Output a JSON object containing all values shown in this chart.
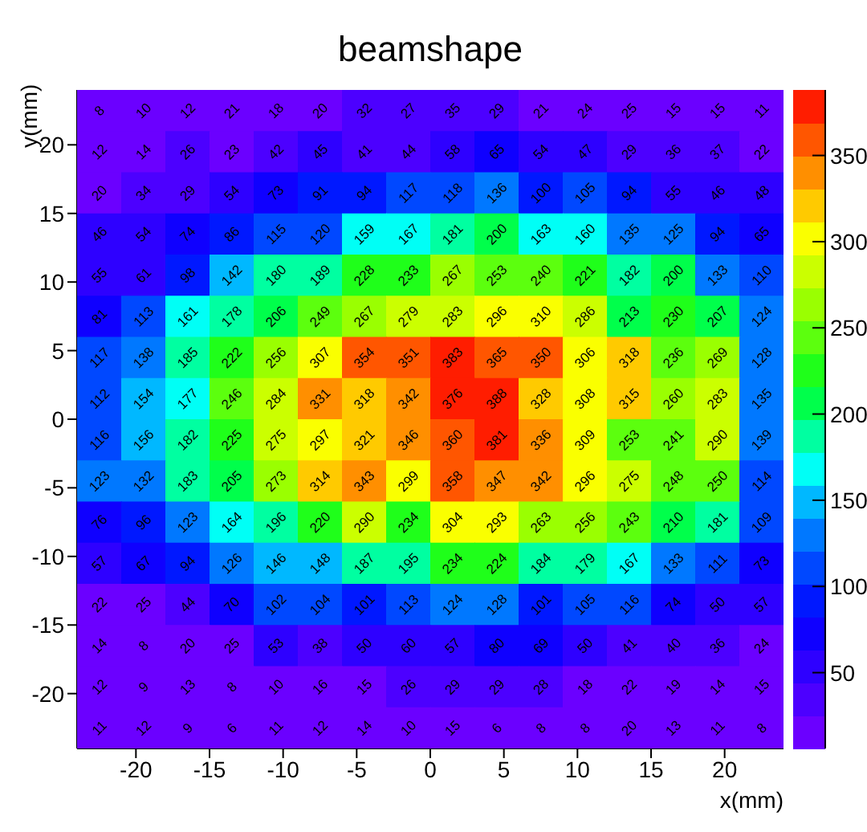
{
  "chart_data": {
    "type": "heatmap",
    "title": "beamshape",
    "xlabel": "x(mm)",
    "ylabel": "y(mm)",
    "xlim": [
      -24,
      24
    ],
    "xticks": [
      -20,
      -15,
      -10,
      -5,
      0,
      5,
      10,
      15,
      20
    ],
    "ylim": [
      -24,
      24
    ],
    "yticks": [
      -20,
      -15,
      -10,
      -5,
      0,
      5,
      10,
      15,
      20
    ],
    "clim": [
      6,
      388
    ],
    "cticks": [
      50,
      100,
      150,
      200,
      250,
      300,
      350
    ],
    "data_labels": true,
    "cells": [
      [
        8,
        10,
        12,
        21,
        18,
        20,
        32,
        27,
        35,
        29,
        21,
        24,
        25,
        15,
        15,
        11
      ],
      [
        12,
        14,
        26,
        23,
        42,
        45,
        41,
        44,
        58,
        65,
        54,
        47,
        29,
        36,
        37,
        22
      ],
      [
        20,
        34,
        29,
        54,
        73,
        91,
        94,
        117,
        118,
        136,
        100,
        105,
        94,
        55,
        46,
        48
      ],
      [
        46,
        54,
        74,
        86,
        115,
        120,
        159,
        167,
        181,
        200,
        163,
        160,
        135,
        125,
        94,
        65
      ],
      [
        55,
        61,
        98,
        142,
        180,
        189,
        228,
        233,
        267,
        253,
        240,
        221,
        182,
        200,
        133,
        110
      ],
      [
        81,
        113,
        161,
        178,
        206,
        249,
        267,
        279,
        283,
        296,
        310,
        286,
        213,
        230,
        207,
        124
      ],
      [
        117,
        138,
        185,
        222,
        256,
        307,
        354,
        351,
        383,
        365,
        350,
        306,
        318,
        236,
        269,
        128
      ],
      [
        112,
        154,
        177,
        246,
        284,
        331,
        318,
        342,
        376,
        388,
        328,
        308,
        315,
        260,
        283,
        135
      ],
      [
        116,
        156,
        182,
        225,
        275,
        297,
        321,
        346,
        360,
        381,
        336,
        309,
        253,
        241,
        290,
        139
      ],
      [
        123,
        132,
        183,
        205,
        273,
        314,
        343,
        299,
        358,
        347,
        342,
        296,
        275,
        248,
        250,
        114
      ],
      [
        76,
        96,
        123,
        164,
        196,
        220,
        290,
        234,
        304,
        293,
        263,
        256,
        243,
        210,
        181,
        109
      ],
      [
        57,
        67,
        94,
        126,
        146,
        148,
        187,
        195,
        234,
        224,
        184,
        179,
        167,
        133,
        111,
        73
      ],
      [
        22,
        25,
        44,
        70,
        102,
        104,
        101,
        113,
        124,
        128,
        101,
        105,
        116,
        74,
        50,
        57
      ],
      [
        14,
        8,
        20,
        25,
        53,
        38,
        50,
        60,
        57,
        80,
        69,
        50,
        41,
        40,
        36,
        24
      ],
      [
        12,
        9,
        13,
        8,
        10,
        16,
        15,
        26,
        29,
        29,
        28,
        18,
        22,
        19,
        14,
        15
      ],
      [
        11,
        12,
        9,
        6,
        11,
        12,
        14,
        10,
        15,
        6,
        8,
        8,
        20,
        13,
        11,
        8
      ]
    ]
  }
}
